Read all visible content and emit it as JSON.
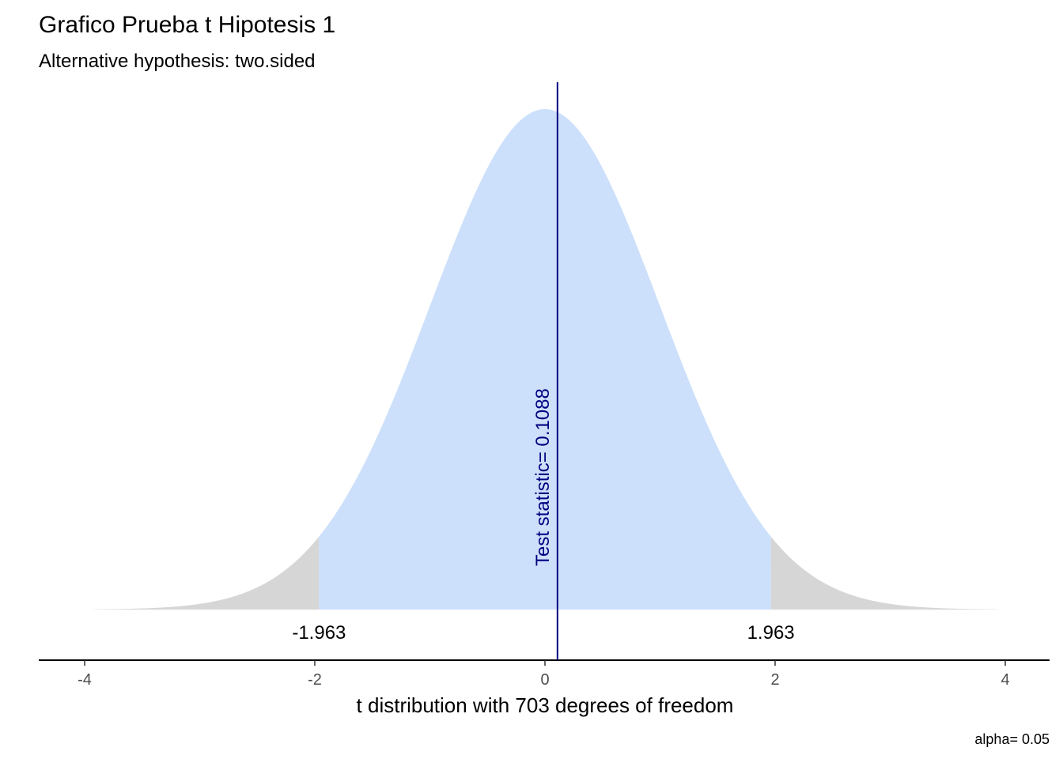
{
  "chart_data": {
    "type": "area",
    "title": "Grafico Prueba t Hipotesis 1",
    "subtitle": "Alternative hypothesis: two.sided",
    "xlabel": "t distribution with 703 degrees of freedom",
    "ylabel": "",
    "degrees_of_freedom": 703,
    "xlim": [
      -4,
      4
    ],
    "x_ticks": [
      -4,
      -2,
      0,
      2,
      4
    ],
    "x_tick_labels": [
      "-4",
      "-2",
      "0",
      "2",
      "4"
    ],
    "critical_values": [
      -1.963,
      1.963
    ],
    "critical_labels": [
      "-1.963",
      "1.963"
    ],
    "test_statistic": 0.1088,
    "test_statistic_label": "Test statistic= 0.1088",
    "caption": "alpha= 0.05",
    "grid": false,
    "colors": {
      "acceptance_region": "#cce0fb",
      "rejection_region": "#d6d6d6",
      "test_statistic_line": "#000080",
      "axis": "#000000"
    }
  }
}
